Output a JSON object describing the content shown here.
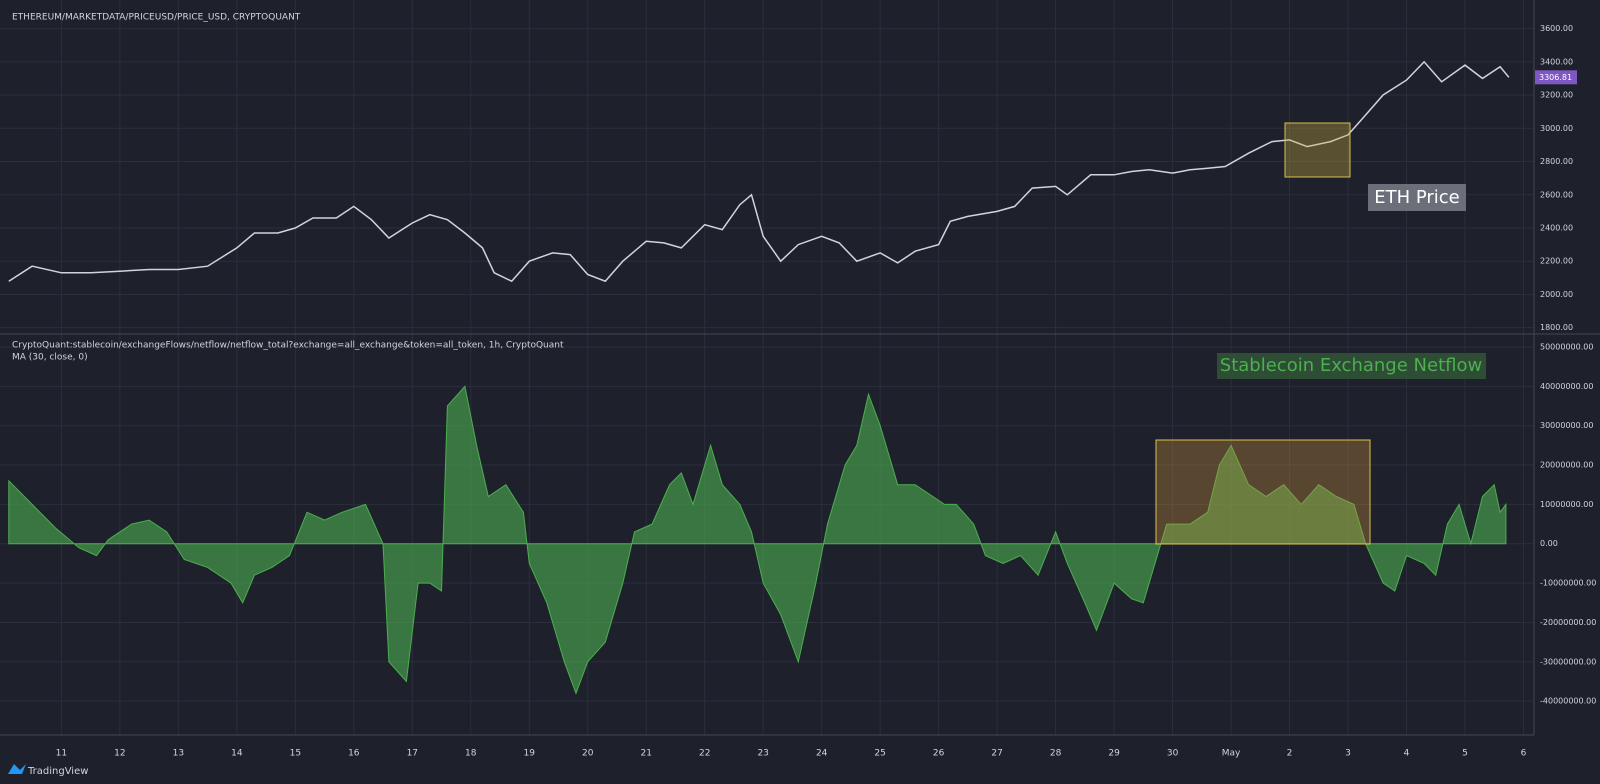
{
  "brand": "TradingView",
  "chart_data": [
    {
      "type": "line",
      "title": "ETHEREUM/MARKETDATA/PRICEUSD/PRICE_USD, CRYPTOQUANT",
      "annotation": "ETH Price",
      "color": "#d1d4dc",
      "xlim": [
        10.07,
        36.18
      ],
      "ylim": [
        1762,
        3772
      ],
      "yticks": [
        {
          "value": 1800,
          "label": "1800.00"
        },
        {
          "value": 2000,
          "label": "2000.00"
        },
        {
          "value": 2200,
          "label": "2200.00"
        },
        {
          "value": 2400,
          "label": "2400.00"
        },
        {
          "value": 2600,
          "label": "2600.00"
        },
        {
          "value": 2800,
          "label": "2800.00"
        },
        {
          "value": 3000,
          "label": "3000.00"
        },
        {
          "value": 3200,
          "label": "3200.00"
        },
        {
          "value": 3400,
          "label": "3400.00"
        },
        {
          "value": 3600,
          "label": "3600.00"
        }
      ],
      "x": [
        10.1,
        10.5,
        11,
        11.5,
        12,
        12.5,
        13,
        13.5,
        14,
        14.3,
        14.7,
        15,
        15.3,
        15.7,
        16,
        16.3,
        16.6,
        17,
        17.3,
        17.6,
        17.9,
        18.2,
        18.4,
        18.7,
        19,
        19.4,
        19.7,
        20,
        20.3,
        20.6,
        21,
        21.3,
        21.6,
        22,
        22.3,
        22.6,
        22.8,
        23,
        23.3,
        23.6,
        24,
        24.3,
        24.6,
        25,
        25.3,
        25.6,
        26,
        26.2,
        26.5,
        27,
        27.3,
        27.6,
        28,
        28.2,
        28.6,
        29,
        29.3,
        29.6,
        30,
        30.3,
        30.6,
        30.9,
        31.3,
        31.7,
        32,
        32.3,
        32.7,
        33,
        33.3,
        33.6,
        34,
        34.3,
        34.6,
        35,
        35.3,
        35.6,
        35.75
      ],
      "values": [
        2080,
        2170,
        2130,
        2130,
        2140,
        2150,
        2150,
        2170,
        2280,
        2370,
        2370,
        2400,
        2460,
        2460,
        2530,
        2450,
        2340,
        2430,
        2480,
        2450,
        2370,
        2280,
        2130,
        2080,
        2200,
        2250,
        2240,
        2120,
        2080,
        2200,
        2320,
        2310,
        2280,
        2420,
        2390,
        2540,
        2600,
        2350,
        2200,
        2300,
        2350,
        2310,
        2200,
        2250,
        2190,
        2260,
        2300,
        2440,
        2470,
        2500,
        2530,
        2640,
        2650,
        2600,
        2720,
        2720,
        2740,
        2750,
        2730,
        2750,
        2760,
        2770,
        2850,
        2920,
        2930,
        2890,
        2920,
        2960,
        3080,
        3200,
        3290,
        3400,
        3280,
        3380,
        3300,
        3370,
        3306.81
      ]
    },
    {
      "type": "area",
      "title": "CryptoQuant:stablecoin/exchangeFlows/netflow/netflow_total?exchange=all_exchange&token=all_token, 1h, CryptoQuant",
      "subtitle": "MA (30, close, 0)",
      "annotation": "Stablecoin Exchange Netflow",
      "color": "#4caf50",
      "xlim": [
        10.07,
        36.18
      ],
      "ylim": [
        -48600000,
        53300000
      ],
      "yticks": [
        {
          "value": -40000000,
          "label": "-40000000.00"
        },
        {
          "value": -30000000,
          "label": "-30000000.00"
        },
        {
          "value": -20000000,
          "label": "-20000000.00"
        },
        {
          "value": -10000000,
          "label": "-10000000.00"
        },
        {
          "value": 0,
          "label": "0.00"
        },
        {
          "value": 10000000,
          "label": "10000000.00"
        },
        {
          "value": 20000000,
          "label": "20000000.00"
        },
        {
          "value": 30000000,
          "label": "30000000.00"
        },
        {
          "value": 40000000,
          "label": "40000000.00"
        },
        {
          "value": 50000000,
          "label": "50000000.00"
        }
      ],
      "xticks": [
        11,
        12,
        13,
        14,
        15,
        16,
        17,
        18,
        19,
        20,
        21,
        22,
        23,
        24,
        25,
        26,
        27,
        28,
        29,
        30,
        {
          "value": 31,
          "label": "May"
        },
        {
          "value": 32,
          "label": "2"
        },
        {
          "value": 33,
          "label": "3"
        },
        {
          "value": 34,
          "label": "4"
        },
        {
          "value": 35,
          "label": "5"
        },
        {
          "value": 36,
          "label": "6"
        }
      ],
      "x": [
        10.1,
        10.5,
        10.9,
        11.3,
        11.6,
        11.8,
        12.2,
        12.5,
        12.8,
        13.1,
        13.5,
        13.9,
        14.1,
        14.3,
        14.6,
        14.9,
        15.2,
        15.5,
        15.8,
        16.2,
        16.5,
        16.6,
        16.9,
        17.1,
        17.3,
        17.5,
        17.6,
        17.9,
        18.1,
        18.3,
        18.6,
        18.9,
        19.0,
        19.3,
        19.6,
        19.8,
        20.0,
        20.3,
        20.6,
        20.8,
        21.1,
        21.4,
        21.6,
        21.8,
        22.1,
        22.3,
        22.6,
        22.8,
        23.0,
        23.3,
        23.6,
        23.9,
        24.1,
        24.4,
        24.6,
        24.8,
        25.0,
        25.3,
        25.6,
        25.9,
        26.1,
        26.3,
        26.6,
        26.8,
        27.1,
        27.4,
        27.7,
        28.0,
        28.2,
        28.5,
        28.7,
        29.0,
        29.3,
        29.5,
        29.7,
        29.9,
        30.3,
        30.6,
        30.8,
        31.0,
        31.3,
        31.6,
        31.9,
        32.2,
        32.5,
        32.8,
        33.1,
        33.3,
        33.6,
        33.8,
        34.0,
        34.3,
        34.5,
        34.7,
        34.9,
        35.1,
        35.3,
        35.5,
        35.6,
        35.7
      ],
      "values": [
        16000000,
        10000000,
        4000000,
        -1000000,
        -3000000,
        1000000,
        5000000,
        6000000,
        3000000,
        -4000000,
        -6000000,
        -10000000,
        -15000000,
        -8000000,
        -6000000,
        -3000000,
        8000000,
        6000000,
        8000000,
        10000000,
        0,
        -30000000,
        -35000000,
        -10000000,
        -10000000,
        -12000000,
        35000000,
        40000000,
        25000000,
        12000000,
        15000000,
        8000000,
        -5000000,
        -15000000,
        -30000000,
        -38000000,
        -30000000,
        -25000000,
        -10000000,
        3000000,
        5000000,
        15000000,
        18000000,
        10000000,
        25000000,
        15000000,
        10000000,
        3000000,
        -10000000,
        -18000000,
        -30000000,
        -10000000,
        5000000,
        20000000,
        25000000,
        38000000,
        30000000,
        15000000,
        15000000,
        12000000,
        10000000,
        10000000,
        5000000,
        -3000000,
        -5000000,
        -3000000,
        -8000000,
        3000000,
        -5000000,
        -15000000,
        -22000000,
        -10000000,
        -14000000,
        -15000000,
        -5000000,
        5000000,
        5000000,
        8000000,
        20000000,
        25000000,
        15000000,
        12000000,
        15000000,
        10000000,
        15000000,
        12000000,
        10000000,
        0,
        -10000000,
        -12000000,
        -3000000,
        -5000000,
        -8000000,
        5000000,
        10000000,
        0,
        12000000,
        15000000,
        8000000,
        10000000
      ]
    }
  ]
}
